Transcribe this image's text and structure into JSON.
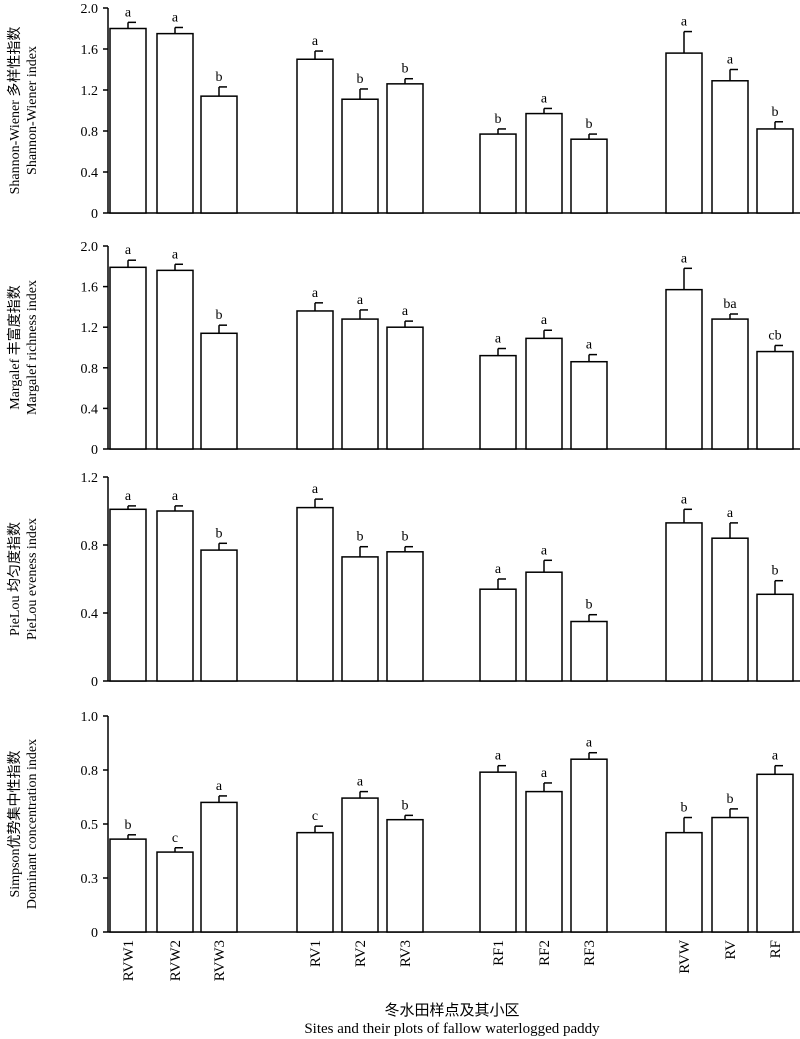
{
  "chart_data": {
    "type": "bar",
    "categories": [
      "RVW1",
      "RVW2",
      "RVW3",
      "RV1",
      "RV2",
      "RV3",
      "RF1",
      "RF2",
      "RF3",
      "RVW",
      "RV",
      "RF"
    ],
    "xlabel_cn": "冬水田样点及其小区",
    "xlabel_en": "Sites and their plots of fallow waterlogged paddy",
    "panels": [
      {
        "ylabel_cn": "Shannon-Wiener 多样性指数",
        "ylabel_en": "Shannon-Wiener index",
        "ylim": [
          0,
          2.0
        ],
        "ticks": [
          0,
          0.4,
          0.8,
          1.2,
          1.6,
          2.0
        ],
        "tick_labels": [
          "0",
          "0.4",
          "0.8",
          "1.2",
          "1.6",
          "2.0"
        ],
        "values": [
          1.8,
          1.75,
          1.14,
          1.5,
          1.11,
          1.26,
          0.77,
          0.97,
          0.72,
          1.56,
          1.29,
          0.82
        ],
        "errors": [
          0.06,
          0.06,
          0.09,
          0.08,
          0.1,
          0.05,
          0.05,
          0.05,
          0.05,
          0.21,
          0.11,
          0.07
        ],
        "letters": [
          "a",
          "a",
          "b",
          "a",
          "b",
          "b",
          "b",
          "a",
          "b",
          "a",
          "a",
          "b"
        ]
      },
      {
        "ylabel_cn": "Margalef 丰富度指数",
        "ylabel_en": "Margalef richness index",
        "ylim": [
          0,
          2.0
        ],
        "ticks": [
          0,
          0.4,
          0.8,
          1.2,
          1.6,
          2.0
        ],
        "tick_labels": [
          "0",
          "0.4",
          "0.8",
          "1.2",
          "1.6",
          "2.0"
        ],
        "values": [
          1.79,
          1.76,
          1.14,
          1.36,
          1.28,
          1.2,
          0.92,
          1.09,
          0.86,
          1.57,
          1.28,
          0.96
        ],
        "errors": [
          0.07,
          0.06,
          0.08,
          0.08,
          0.09,
          0.06,
          0.07,
          0.08,
          0.07,
          0.21,
          0.05,
          0.06
        ],
        "letters": [
          "a",
          "a",
          "b",
          "a",
          "a",
          "a",
          "a",
          "a",
          "a",
          "a",
          "ba",
          "cb"
        ]
      },
      {
        "ylabel_cn": "PieLou 均匀度指数",
        "ylabel_en": "PieLou eveness index",
        "ylim": [
          0,
          1.2
        ],
        "ticks": [
          0,
          0.4,
          0.8,
          1.2
        ],
        "tick_labels": [
          "0",
          "0.4",
          "0.8",
          "1.2"
        ],
        "values": [
          1.01,
          1.0,
          0.77,
          1.02,
          0.73,
          0.76,
          0.54,
          0.64,
          0.35,
          0.93,
          0.84,
          0.51
        ],
        "errors": [
          0.02,
          0.03,
          0.04,
          0.05,
          0.06,
          0.03,
          0.06,
          0.07,
          0.04,
          0.08,
          0.09,
          0.08
        ],
        "letters": [
          "a",
          "a",
          "b",
          "a",
          "b",
          "b",
          "a",
          "a",
          "b",
          "a",
          "a",
          "b"
        ]
      },
      {
        "ylabel_cn": "Simpson优势集中性指数",
        "ylabel_en": "Dominant concentration  index",
        "ylim": [
          0,
          1.0
        ],
        "ticks": [
          0,
          0.25,
          0.5,
          0.75,
          1.0
        ],
        "tick_labels": [
          "0",
          "0.3",
          "0.5",
          "0.8",
          "1.0"
        ],
        "values": [
          0.43,
          0.37,
          0.6,
          0.46,
          0.62,
          0.52,
          0.74,
          0.65,
          0.8,
          0.46,
          0.53,
          0.73
        ],
        "errors": [
          0.02,
          0.02,
          0.03,
          0.03,
          0.03,
          0.02,
          0.03,
          0.04,
          0.03,
          0.07,
          0.04,
          0.04
        ],
        "letters": [
          "b",
          "c",
          "a",
          "c",
          "a",
          "b",
          "a",
          "a",
          "a",
          "b",
          "b",
          "a"
        ]
      }
    ]
  }
}
